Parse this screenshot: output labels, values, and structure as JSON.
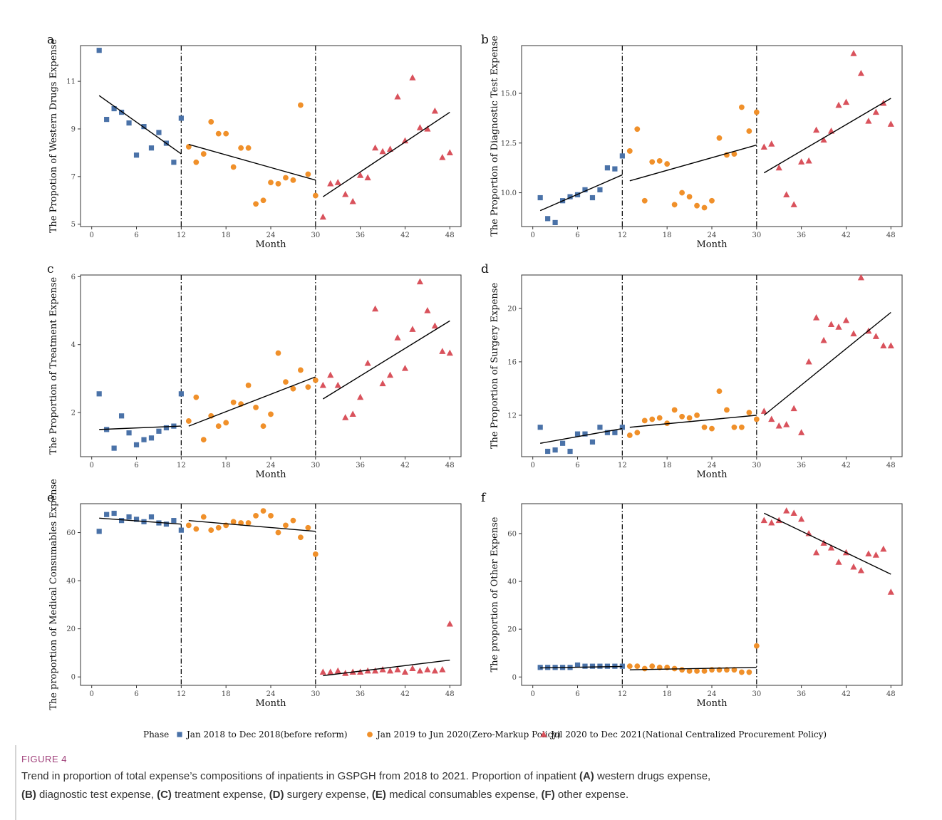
{
  "figure": {
    "label": "FIGURE 4",
    "caption_line1": [
      {
        "t": "Trend in proportion of total expense’s compositions of inpatients in GSPGH from 2018 to 2021. Proportion of inpatient ",
        "b": false
      },
      {
        "t": "(A)",
        "b": true
      },
      {
        "t": " western drugs expense,",
        "b": false
      }
    ],
    "caption_line2": [
      {
        "t": "(B)",
        "b": true
      },
      {
        "t": " diagnostic test expense, ",
        "b": false
      },
      {
        "t": "(C)",
        "b": true
      },
      {
        "t": " treatment expense, ",
        "b": false
      },
      {
        "t": "(D)",
        "b": true
      },
      {
        "t": " surgery expense, ",
        "b": false
      },
      {
        "t": "(E)",
        "b": true
      },
      {
        "t": " medical consumables expense, ",
        "b": false
      },
      {
        "t": "(F)",
        "b": true
      },
      {
        "t": " other expense.",
        "b": false
      }
    ]
  },
  "legend": {
    "title": "Phase",
    "placement": "bottom",
    "items": [
      {
        "label": "Jan 2018 to Dec 2018(before reform)",
        "shape": "square",
        "color": "#4a72a8"
      },
      {
        "label": "Jan 2019 to Jun 2020(Zero-Markup Policy)",
        "shape": "circle",
        "color": "#f0902a"
      },
      {
        "label": "Jul 2020 to Dec 2021(National Centralized Procurement Policy)",
        "shape": "triangle",
        "color": "#d9525c"
      }
    ]
  },
  "chart_data": [
    {
      "letter": "a",
      "type": "scatter",
      "xlabel": "Month",
      "ylabel": "The Propotion of Western Drugs Expense",
      "xlim": [
        -1.5,
        49.5
      ],
      "ylim": [
        4.9,
        12.5
      ],
      "xticks": [
        0,
        6,
        12,
        18,
        24,
        30,
        36,
        42,
        48
      ],
      "yticks": [
        5,
        7,
        9,
        11
      ],
      "tick_decimals": 0,
      "vlines": [
        12,
        30
      ],
      "series": [
        {
          "phase": 0,
          "y": [
            12.3,
            9.4,
            9.85,
            9.7,
            9.25,
            7.9,
            9.1,
            8.2,
            8.85,
            8.4,
            7.6,
            9.45
          ]
        },
        {
          "phase": 1,
          "y": [
            8.25,
            7.6,
            7.95,
            9.3,
            8.8,
            8.8,
            7.4,
            8.2,
            8.2,
            5.85,
            6.0,
            6.75,
            6.7,
            6.95,
            6.85,
            10.0,
            7.1,
            6.2
          ]
        },
        {
          "phase": 2,
          "y": [
            5.3,
            6.7,
            6.75,
            6.25,
            5.95,
            7.05,
            6.95,
            8.2,
            8.05,
            8.15,
            10.35,
            8.5,
            11.15,
            9.05,
            9.0,
            9.75,
            7.8,
            8.0
          ]
        }
      ],
      "trends": [
        {
          "x": [
            1,
            12
          ],
          "y": [
            10.4,
            7.95
          ]
        },
        {
          "x": [
            13,
            30
          ],
          "y": [
            8.35,
            6.85
          ]
        },
        {
          "x": [
            31,
            48
          ],
          "y": [
            6.15,
            9.7
          ]
        }
      ]
    },
    {
      "letter": "b",
      "type": "scatter",
      "xlabel": "Month",
      "ylabel": "The Proportion of Diagnostic Test Expense",
      "xlim": [
        -1.5,
        49.5
      ],
      "ylim": [
        8.3,
        17.4
      ],
      "xticks": [
        0,
        6,
        12,
        18,
        24,
        30,
        36,
        42,
        48
      ],
      "yticks": [
        10,
        12.5,
        15
      ],
      "tick_decimals": 1,
      "vlines": [
        12,
        30
      ],
      "series": [
        {
          "phase": 0,
          "y": [
            9.75,
            8.7,
            8.5,
            9.6,
            9.8,
            9.9,
            10.15,
            9.75,
            10.15,
            11.25,
            11.2,
            11.85
          ]
        },
        {
          "phase": 1,
          "y": [
            12.1,
            13.2,
            9.6,
            11.55,
            11.6,
            11.45,
            9.4,
            10.0,
            9.8,
            9.35,
            9.25,
            9.6,
            12.75,
            11.9,
            11.95,
            14.3,
            13.1,
            14.05
          ]
        },
        {
          "phase": 2,
          "y": [
            12.3,
            12.45,
            11.25,
            9.9,
            9.4,
            11.55,
            11.6,
            13.15,
            12.65,
            13.1,
            14.4,
            14.55,
            17.0,
            16.0,
            13.6,
            14.05,
            14.5,
            13.45
          ]
        }
      ],
      "trends": [
        {
          "x": [
            1,
            12
          ],
          "y": [
            9.1,
            10.9
          ]
        },
        {
          "x": [
            13,
            30
          ],
          "y": [
            10.6,
            12.4
          ]
        },
        {
          "x": [
            31,
            48
          ],
          "y": [
            11.0,
            14.75
          ]
        }
      ]
    },
    {
      "letter": "c",
      "type": "scatter",
      "xlabel": "Month",
      "ylabel": "The Proportion of Treatment Expense",
      "xlim": [
        -1.5,
        49.5
      ],
      "ylim": [
        0.7,
        6.05
      ],
      "xticks": [
        0,
        6,
        12,
        18,
        24,
        30,
        36,
        42,
        48
      ],
      "yticks": [
        2,
        4,
        6
      ],
      "tick_decimals": 0,
      "vlines": [
        12,
        30
      ],
      "series": [
        {
          "phase": 0,
          "y": [
            2.55,
            1.5,
            0.95,
            1.9,
            1.4,
            1.05,
            1.2,
            1.25,
            1.45,
            1.55,
            1.6,
            2.55
          ]
        },
        {
          "phase": 1,
          "y": [
            1.75,
            2.45,
            1.2,
            1.9,
            1.6,
            1.7,
            2.3,
            2.25,
            2.8,
            2.15,
            1.6,
            1.95,
            3.75,
            2.9,
            2.7,
            3.25,
            2.75,
            2.95
          ]
        },
        {
          "phase": 2,
          "y": [
            2.8,
            3.1,
            2.8,
            1.85,
            1.95,
            2.45,
            3.45,
            5.05,
            2.85,
            3.1,
            4.2,
            3.3,
            4.45,
            5.85,
            5.0,
            4.55,
            3.8,
            3.75
          ]
        }
      ],
      "trends": [
        {
          "x": [
            1,
            12
          ],
          "y": [
            1.5,
            1.6
          ]
        },
        {
          "x": [
            13,
            30
          ],
          "y": [
            1.6,
            3.05
          ]
        },
        {
          "x": [
            31,
            48
          ],
          "y": [
            2.4,
            4.7
          ]
        }
      ]
    },
    {
      "letter": "d",
      "type": "scatter",
      "xlabel": "Month",
      "ylabel": "The Proportion of Surgery Expense",
      "xlim": [
        -1.5,
        49.5
      ],
      "ylim": [
        8.9,
        22.5
      ],
      "xticks": [
        0,
        6,
        12,
        18,
        24,
        30,
        36,
        42,
        48
      ],
      "yticks": [
        12,
        16,
        20
      ],
      "tick_decimals": 0,
      "vlines": [
        12,
        30
      ],
      "series": [
        {
          "phase": 0,
          "y": [
            11.1,
            9.3,
            9.4,
            9.9,
            9.3,
            10.6,
            10.6,
            10.0,
            11.1,
            10.7,
            10.7,
            11.1
          ]
        },
        {
          "phase": 1,
          "y": [
            10.5,
            10.7,
            11.6,
            11.7,
            11.8,
            11.4,
            12.4,
            11.9,
            11.8,
            12.0,
            11.1,
            11.0,
            13.8,
            12.4,
            11.1,
            11.1,
            12.2,
            11.7
          ]
        },
        {
          "phase": 2,
          "y": [
            12.3,
            11.7,
            11.2,
            11.3,
            12.5,
            10.7,
            16.0,
            19.3,
            17.6,
            18.8,
            18.6,
            19.1,
            18.1,
            22.3,
            18.3,
            17.9,
            17.2,
            17.2
          ]
        }
      ],
      "trends": [
        {
          "x": [
            1,
            12
          ],
          "y": [
            9.9,
            11.0
          ]
        },
        {
          "x": [
            13,
            30
          ],
          "y": [
            11.1,
            12.0
          ]
        },
        {
          "x": [
            31,
            48
          ],
          "y": [
            12.0,
            19.7
          ]
        }
      ]
    },
    {
      "letter": "e",
      "type": "scatter",
      "xlabel": "Month",
      "ylabel": "The proportion of Medical Consumables Expense",
      "xlim": [
        -1.5,
        49.5
      ],
      "ylim": [
        -3.5,
        72.0
      ],
      "xticks": [
        0,
        6,
        12,
        18,
        24,
        30,
        36,
        42,
        48
      ],
      "yticks": [
        0,
        20,
        40,
        60
      ],
      "tick_decimals": 0,
      "vlines": [
        12,
        30
      ],
      "series": [
        {
          "phase": 0,
          "y": [
            60.5,
            67.5,
            68.0,
            65.0,
            66.5,
            65.5,
            64.5,
            66.5,
            64.0,
            63.5,
            65.0,
            61.0
          ]
        },
        {
          "phase": 1,
          "y": [
            63.0,
            61.5,
            66.5,
            61.0,
            62.0,
            63.0,
            64.5,
            64.0,
            64.0,
            67.0,
            69.0,
            67.0,
            60.0,
            63.0,
            65.0,
            58.0,
            62.0,
            51.0
          ]
        },
        {
          "phase": 2,
          "y": [
            2.0,
            2.0,
            2.5,
            1.5,
            2.0,
            2.0,
            2.5,
            2.5,
            3.0,
            2.5,
            3.0,
            2.0,
            3.5,
            2.5,
            3.0,
            2.5,
            3.0,
            22.0
          ]
        }
      ],
      "trends": [
        {
          "x": [
            1,
            12
          ],
          "y": [
            66.0,
            63.5
          ]
        },
        {
          "x": [
            13,
            30
          ],
          "y": [
            65.0,
            60.5
          ]
        },
        {
          "x": [
            31,
            48
          ],
          "y": [
            0.5,
            7.0
          ]
        }
      ]
    },
    {
      "letter": "f",
      "type": "scatter",
      "xlabel": "Month",
      "ylabel": "The proportion of Other Expense",
      "xlim": [
        -1.5,
        49.5
      ],
      "ylim": [
        -3.5,
        72.5
      ],
      "xticks": [
        0,
        6,
        12,
        18,
        24,
        30,
        36,
        42,
        48
      ],
      "yticks": [
        0,
        20,
        40,
        60
      ],
      "tick_decimals": 0,
      "vlines": [
        12,
        30
      ],
      "series": [
        {
          "phase": 0,
          "y": [
            4.0,
            4.0,
            4.0,
            4.0,
            4.0,
            5.0,
            4.5,
            4.5,
            4.5,
            4.5,
            4.5,
            4.5
          ]
        },
        {
          "phase": 1,
          "y": [
            4.5,
            4.5,
            3.5,
            4.5,
            4.0,
            4.0,
            3.5,
            3.0,
            2.5,
            2.5,
            2.5,
            3.0,
            3.0,
            3.0,
            3.0,
            2.0,
            2.0,
            13.0
          ]
        },
        {
          "phase": 2,
          "y": [
            65.5,
            64.5,
            65.5,
            69.5,
            68.5,
            66.0,
            60.0,
            52.0,
            56.0,
            54.0,
            48.0,
            52.0,
            46.0,
            44.5,
            51.5,
            51.0,
            53.5,
            35.5
          ]
        }
      ],
      "trends": [
        {
          "x": [
            1,
            12
          ],
          "y": [
            3.8,
            4.4
          ]
        },
        {
          "x": [
            13,
            30
          ],
          "y": [
            3.0,
            4.0
          ]
        },
        {
          "x": [
            31,
            48
          ],
          "y": [
            68.5,
            43.0
          ]
        }
      ]
    }
  ]
}
